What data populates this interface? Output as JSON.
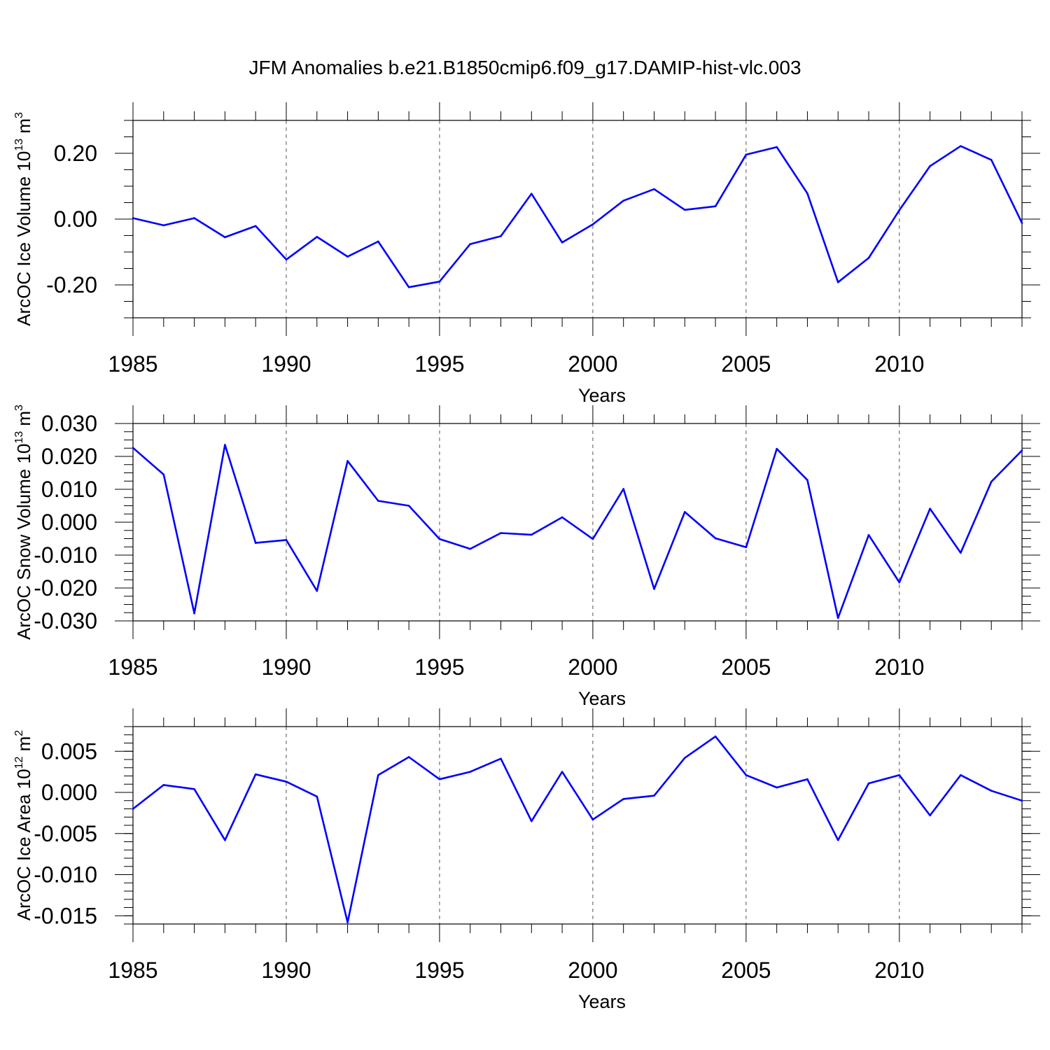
{
  "title": "JFM Anomalies b.e21.B1850cmip6.f09_g17.DAMIP-hist-vlc.003",
  "colors": {
    "line": "#0000ff",
    "axis": "#000000",
    "grid": "#555555"
  },
  "chart_data": [
    {
      "type": "line",
      "name": "ice-volume",
      "ylabel": "ArcOC Ice Volume 10",
      "ylabel_exp": "13",
      "ylabel_unit": " m",
      "ylabel_unit_exp": "3",
      "xlabel": "Years",
      "xlim": [
        1985,
        2014
      ],
      "ylim": [
        -0.3,
        0.3
      ],
      "x_ticks": [
        1985,
        1990,
        1995,
        2000,
        2005,
        2010
      ],
      "x_tick_labels": [
        "1985",
        "1990",
        "1995",
        "2000",
        "2005",
        "2010"
      ],
      "y_ticks": [
        0.2,
        0.0,
        -0.2
      ],
      "y_tick_labels": [
        "0.20",
        "0.00",
        "-0.20"
      ],
      "y_minor_step": 0.05,
      "vgrid_dashed": [
        1990,
        1995,
        2000,
        2005,
        2010
      ],
      "x": [
        1985,
        1986,
        1987,
        1988,
        1989,
        1990,
        1991,
        1992,
        1993,
        1994,
        1995,
        1996,
        1997,
        1998,
        1999,
        2000,
        2001,
        2002,
        2003,
        2004,
        2005,
        2006,
        2007,
        2008,
        2009,
        2010,
        2011,
        2012,
        2013,
        2014
      ],
      "values": [
        0.003,
        -0.019,
        0.003,
        -0.055,
        -0.021,
        -0.123,
        -0.054,
        -0.114,
        -0.068,
        -0.207,
        -0.19,
        -0.076,
        -0.052,
        0.077,
        -0.071,
        -0.016,
        0.056,
        0.091,
        0.028,
        0.039,
        0.196,
        0.219,
        0.078,
        -0.192,
        -0.118,
        0.027,
        0.161,
        0.222,
        0.18,
        -0.012
      ]
    },
    {
      "type": "line",
      "name": "snow-volume",
      "ylabel": "ArcOC Snow Volume 10",
      "ylabel_exp": "13",
      "ylabel_unit": " m",
      "ylabel_unit_exp": "3",
      "xlabel": "Years",
      "xlim": [
        1985,
        2014
      ],
      "ylim": [
        -0.03,
        0.03
      ],
      "x_ticks": [
        1985,
        1990,
        1995,
        2000,
        2005,
        2010
      ],
      "x_tick_labels": [
        "1985",
        "1990",
        "1995",
        "2000",
        "2005",
        "2010"
      ],
      "y_ticks": [
        0.03,
        0.02,
        0.01,
        0.0,
        -0.01,
        -0.02,
        -0.03
      ],
      "y_tick_labels": [
        "0.030",
        "0.020",
        "0.010",
        "0.000",
        "-0.010",
        "-0.020",
        "-0.030"
      ],
      "y_minor_step": 0.0025,
      "vgrid_dashed": [
        1990,
        1995,
        2000,
        2005,
        2010
      ],
      "x": [
        1985,
        1986,
        1987,
        1988,
        1989,
        1990,
        1991,
        1992,
        1993,
        1994,
        1995,
        1996,
        1997,
        1998,
        1999,
        2000,
        2001,
        2002,
        2003,
        2004,
        2005,
        2006,
        2007,
        2008,
        2009,
        2010,
        2011,
        2012,
        2013,
        2014
      ],
      "values": [
        0.0226,
        0.0145,
        -0.0277,
        0.0235,
        -0.0063,
        -0.0054,
        -0.0209,
        0.0186,
        0.0065,
        0.005,
        -0.0051,
        -0.0081,
        -0.0033,
        -0.0038,
        0.0015,
        -0.0051,
        0.0101,
        -0.0203,
        0.0031,
        -0.0049,
        -0.0076,
        0.0223,
        0.0128,
        -0.0291,
        -0.0039,
        -0.0183,
        0.0041,
        -0.0093,
        0.0123,
        0.0218
      ]
    },
    {
      "type": "line",
      "name": "ice-area",
      "ylabel": "ArcOC Ice Area 10",
      "ylabel_exp": "12",
      "ylabel_unit": " m",
      "ylabel_unit_exp": "2",
      "xlabel": "Years",
      "xlim": [
        1985,
        2014
      ],
      "ylim": [
        -0.016,
        0.008
      ],
      "x_ticks": [
        1985,
        1990,
        1995,
        2000,
        2005,
        2010
      ],
      "x_tick_labels": [
        "1985",
        "1990",
        "1995",
        "2000",
        "2005",
        "2010"
      ],
      "y_ticks": [
        0.005,
        0.0,
        -0.005,
        -0.01,
        -0.015
      ],
      "y_tick_labels": [
        "0.005",
        "0.000",
        "-0.005",
        "-0.010",
        "-0.015"
      ],
      "y_minor_step": 0.001,
      "vgrid_dashed": [
        1990,
        1995,
        2000,
        2005,
        2010
      ],
      "x": [
        1985,
        1986,
        1987,
        1988,
        1989,
        1990,
        1991,
        1992,
        1993,
        1994,
        1995,
        1996,
        1997,
        1998,
        1999,
        2000,
        2001,
        2002,
        2003,
        2004,
        2005,
        2006,
        2007,
        2008,
        2009,
        2010,
        2011,
        2012,
        2013,
        2014
      ],
      "values": [
        -0.002,
        0.0009,
        0.0004,
        -0.0058,
        0.0022,
        0.0013,
        -0.0005,
        -0.0158,
        0.0021,
        0.0043,
        0.0016,
        0.0025,
        0.0041,
        -0.0035,
        0.0025,
        -0.0033,
        -0.0008,
        -0.0004,
        0.0042,
        0.0068,
        0.0021,
        0.0006,
        0.0016,
        -0.0058,
        0.0011,
        0.0021,
        -0.0028,
        0.0021,
        0.0002,
        -0.001
      ]
    }
  ]
}
